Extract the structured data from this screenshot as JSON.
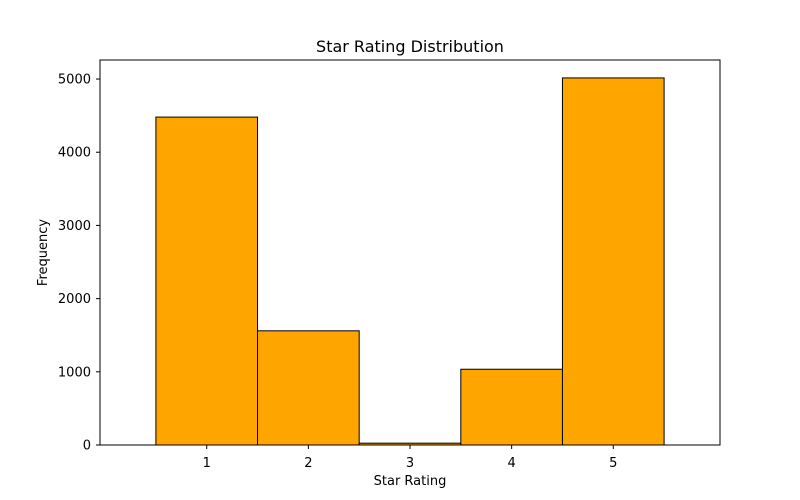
{
  "chart_data": {
    "type": "bar",
    "title": "Star Rating Distribution",
    "xlabel": "Star Rating",
    "ylabel": "Frequency",
    "categories": [
      "1",
      "2",
      "3",
      "4",
      "5"
    ],
    "values": [
      4480,
      1560,
      25,
      1035,
      5015
    ],
    "ylim": [
      0,
      5260
    ],
    "yticks": [
      "0",
      "1000",
      "2000",
      "3000",
      "4000",
      "5000"
    ],
    "bar_color": "#ffa500",
    "edge_color": "#000000",
    "grid": false,
    "legend": "none"
  }
}
